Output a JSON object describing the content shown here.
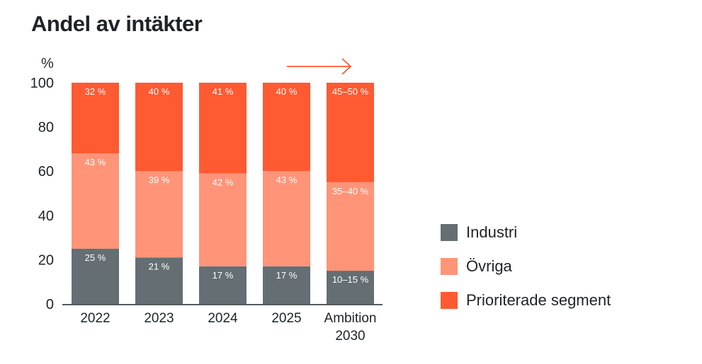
{
  "chart_data": {
    "type": "bar",
    "stacked": true,
    "title": "Andel av intäkter",
    "ylabel": "%",
    "ylim": [
      0,
      100
    ],
    "yticks": [
      0,
      20,
      40,
      60,
      80,
      100
    ],
    "grid": false,
    "legend_placement": "right",
    "categories": [
      "2022",
      "2023",
      "2024",
      "2025",
      "Ambition 2030"
    ],
    "series": [
      {
        "name": "Industri",
        "color": "#646e73",
        "values": [
          25,
          21,
          17,
          17,
          15
        ],
        "labels": [
          "25 %",
          "21 %",
          "17 %",
          "17 %",
          "10–15 %"
        ]
      },
      {
        "name": "Övriga",
        "color": "#ff9478",
        "values": [
          43,
          39,
          42,
          43,
          40
        ],
        "labels": [
          "43 %",
          "39 %",
          "42 %",
          "43 %",
          "35–40 %"
        ]
      },
      {
        "name": "Prioriterade segment",
        "color": "#ff5a32",
        "values": [
          32,
          40,
          41,
          40,
          45
        ],
        "labels": [
          "32 %",
          "40 %",
          "41 %",
          "40 %",
          "45–50 %"
        ]
      }
    ],
    "annotation": "arrow-right"
  }
}
